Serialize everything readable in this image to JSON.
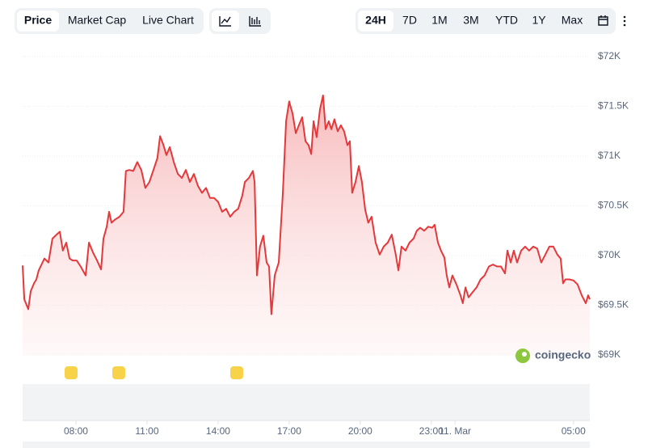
{
  "toolbar": {
    "views": [
      "Price",
      "Market Cap",
      "Live Chart"
    ],
    "ranges": [
      "24H",
      "7D",
      "1M",
      "3M",
      "YTD",
      "1Y",
      "Max"
    ]
  },
  "brand": "coingecko",
  "chart_data": {
    "type": "line",
    "color": "#e5383b",
    "x": [
      5.75,
      5.82,
      5.99,
      6.09,
      6.23,
      6.33,
      6.43,
      6.67,
      6.84,
      7.01,
      7.18,
      7.32,
      7.45,
      7.59,
      7.73,
      7.86,
      8.03,
      8.2,
      8.41,
      8.55,
      8.72,
      8.89,
      9.06,
      9.16,
      9.3,
      9.4,
      9.5,
      9.64,
      9.84,
      10.01,
      10.11,
      10.25,
      10.42,
      10.59,
      10.76,
      10.93,
      11.1,
      11.27,
      11.44,
      11.55,
      11.68,
      11.82,
      11.96,
      12.13,
      12.3,
      12.47,
      12.64,
      12.81,
      12.98,
      13.15,
      13.32,
      13.49,
      13.66,
      13.83,
      14.0,
      14.17,
      14.34,
      14.51,
      14.68,
      14.85,
      15.02,
      15.13,
      15.3,
      15.47,
      15.54,
      15.64,
      15.77,
      15.91,
      16.05,
      16.15,
      16.25,
      16.39,
      16.56,
      16.73,
      16.87,
      17.0,
      17.14,
      17.28,
      17.41,
      17.55,
      17.69,
      17.82,
      17.93,
      18.03,
      18.16,
      18.3,
      18.43,
      18.54,
      18.67,
      18.78,
      18.91,
      19.05,
      19.18,
      19.32,
      19.46,
      19.56,
      19.66,
      19.8,
      19.94,
      20.07,
      20.21,
      20.34,
      20.48,
      20.65,
      20.82,
      20.99,
      21.16,
      21.33,
      21.5,
      21.61,
      21.74,
      21.91,
      22.08,
      22.25,
      22.39,
      22.53,
      22.7,
      22.87,
      23.04,
      23.14,
      23.28,
      23.41,
      23.55,
      23.65,
      23.76,
      23.89,
      24.06,
      24.23,
      24.33,
      24.44,
      24.57,
      24.74,
      24.91,
      25.08,
      25.25,
      25.43,
      25.6,
      25.77,
      25.94,
      26.11,
      26.21,
      26.35,
      26.48,
      26.62,
      26.79,
      26.96,
      27.13,
      27.3,
      27.47,
      27.64,
      27.81,
      27.98,
      28.15,
      28.32,
      28.46,
      28.56,
      28.66,
      28.83,
      29.0,
      29.17,
      29.35,
      29.52,
      29.62,
      29.69
    ],
    "values": [
      69900,
      69560,
      69460,
      69640,
      69720,
      69760,
      69850,
      69970,
      69930,
      70170,
      70210,
      70240,
      70050,
      70130,
      69970,
      69950,
      69950,
      69890,
      69800,
      70130,
      70030,
      69950,
      69860,
      70170,
      70290,
      70440,
      70330,
      70360,
      70390,
      70440,
      70850,
      70860,
      70850,
      70940,
      70860,
      70680,
      70740,
      70860,
      70980,
      71200,
      71120,
      71010,
      71090,
      70940,
      70820,
      70780,
      70860,
      70740,
      70820,
      70700,
      70630,
      70680,
      70580,
      70580,
      70540,
      70440,
      70470,
      70390,
      70440,
      70470,
      70600,
      70740,
      70780,
      70850,
      70740,
      69800,
      70090,
      70200,
      69930,
      69890,
      69410,
      69800,
      69930,
      70620,
      71350,
      71550,
      71430,
      71230,
      71310,
      71390,
      71150,
      71110,
      71020,
      71350,
      71190,
      71470,
      71610,
      71270,
      71350,
      71270,
      71370,
      71250,
      71310,
      71250,
      71110,
      71150,
      70630,
      70740,
      70900,
      70740,
      70460,
      70330,
      70390,
      70130,
      70010,
      70090,
      70130,
      70210,
      70010,
      69850,
      70090,
      70050,
      70130,
      70170,
      70250,
      70280,
      70250,
      70290,
      70280,
      70310,
      70130,
      70050,
      69980,
      69800,
      69680,
      69800,
      69710,
      69600,
      69520,
      69680,
      69580,
      69630,
      69680,
      69760,
      69800,
      69890,
      69910,
      69890,
      69890,
      69820,
      70050,
      69930,
      70050,
      69930,
      70050,
      70090,
      70050,
      70090,
      70070,
      69930,
      70010,
      70090,
      70090,
      70010,
      69970,
      69720,
      69760,
      69760,
      69750,
      69710,
      69600,
      69520,
      69600,
      69560
    ],
    "xlim": [
      5.75,
      29.69
    ],
    "xticks": [
      {
        "value": 8,
        "label": "08:00"
      },
      {
        "value": 11,
        "label": "11:00"
      },
      {
        "value": 14,
        "label": "14:00"
      },
      {
        "value": 17,
        "label": "17:00"
      },
      {
        "value": 20,
        "label": "20:00"
      },
      {
        "value": 23,
        "label": "23:00"
      },
      {
        "value": 24,
        "label": "11. Mar"
      },
      {
        "value": 29,
        "label": "05:00"
      }
    ],
    "ylim": [
      69000,
      72000
    ],
    "yticks": [
      {
        "value": 69000,
        "label": "$69K"
      },
      {
        "value": 69500,
        "label": "$69.5K"
      },
      {
        "value": 70000,
        "label": "$70K"
      },
      {
        "value": 70500,
        "label": "$70.5K"
      },
      {
        "value": 71000,
        "label": "$71K"
      },
      {
        "value": 71500,
        "label": "$71.5K"
      },
      {
        "value": 72000,
        "label": "$72K"
      }
    ],
    "grid": true
  }
}
